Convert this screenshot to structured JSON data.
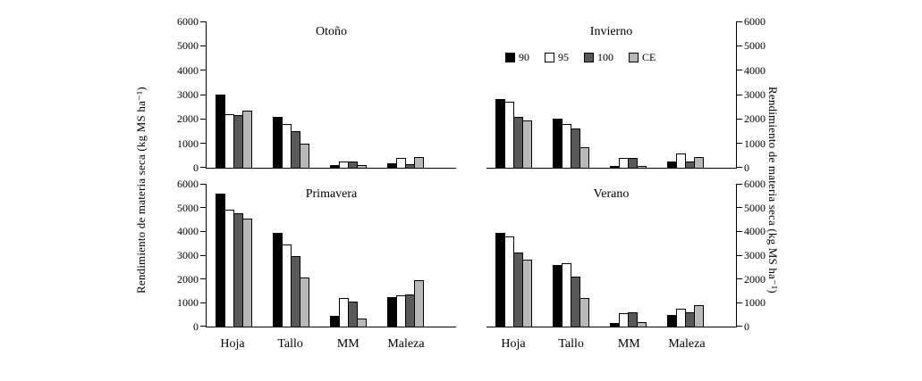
{
  "figure": {
    "left_axis_label": "Rendimiento de materia seca (kg MS ha⁻¹)",
    "right_axis_label": "Rendimiento de materia seca (kg MS ha⁻¹)",
    "background": "#ffffff",
    "axis_color": "#000000"
  },
  "legend": {
    "position": "top-center, inside Invierno panel",
    "entries": [
      {
        "label": "90",
        "color": "#000000"
      },
      {
        "label": "95",
        "color": "#ffffff"
      },
      {
        "label": "100",
        "color": "#595959"
      },
      {
        "label": "CE",
        "color": "#b8b8b8"
      }
    ]
  },
  "axes": {
    "yticks": [
      0,
      1000,
      2000,
      3000,
      4000,
      5000,
      6000
    ],
    "ytick_labels": [
      "0",
      "1000",
      "2000",
      "3000",
      "4000",
      "5000",
      "6000"
    ],
    "x_categories": [
      "Hoja",
      "Tallo",
      "MM",
      "Maleza"
    ]
  },
  "chart_data": [
    {
      "type": "bar",
      "title": "Otoño",
      "categories": [
        "Hoja",
        "Tallo",
        "MM",
        "Maleza"
      ],
      "series": [
        {
          "name": "90",
          "color": "#000000",
          "values": [
            3000,
            2100,
            100,
            200
          ]
        },
        {
          "name": "95",
          "color": "#ffffff",
          "values": [
            2200,
            1800,
            250,
            400
          ]
        },
        {
          "name": "100",
          "color": "#595959",
          "values": [
            2150,
            1500,
            250,
            150
          ]
        },
        {
          "name": "CE",
          "color": "#b8b8b8",
          "values": [
            2350,
            1000,
            100,
            450
          ]
        }
      ],
      "ylim": [
        0,
        6000
      ],
      "grid": false,
      "y_axis_side": "left"
    },
    {
      "type": "bar",
      "title": "Invierno",
      "categories": [
        "Hoja",
        "Tallo",
        "MM",
        "Maleza"
      ],
      "series": [
        {
          "name": "90",
          "color": "#000000",
          "values": [
            2800,
            2000,
            80,
            250
          ]
        },
        {
          "name": "95",
          "color": "#ffffff",
          "values": [
            2700,
            1800,
            400,
            600
          ]
        },
        {
          "name": "100",
          "color": "#595959",
          "values": [
            2100,
            1600,
            400,
            250
          ]
        },
        {
          "name": "CE",
          "color": "#b8b8b8",
          "values": [
            1950,
            850,
            80,
            450
          ]
        }
      ],
      "ylim": [
        0,
        6000
      ],
      "grid": false,
      "y_axis_side": "right"
    },
    {
      "type": "bar",
      "title": "Primavera",
      "categories": [
        "Hoja",
        "Tallo",
        "MM",
        "Maleza"
      ],
      "series": [
        {
          "name": "90",
          "color": "#000000",
          "values": [
            5600,
            3950,
            450,
            1250
          ]
        },
        {
          "name": "95",
          "color": "#ffffff",
          "values": [
            4900,
            3450,
            1200,
            1300
          ]
        },
        {
          "name": "100",
          "color": "#595959",
          "values": [
            4750,
            2950,
            1050,
            1350
          ]
        },
        {
          "name": "CE",
          "color": "#b8b8b8",
          "values": [
            4550,
            2050,
            350,
            1950
          ]
        }
      ],
      "ylim": [
        0,
        6000
      ],
      "grid": false,
      "y_axis_side": "left"
    },
    {
      "type": "bar",
      "title": "Verano",
      "categories": [
        "Hoja",
        "Tallo",
        "MM",
        "Maleza"
      ],
      "series": [
        {
          "name": "90",
          "color": "#000000",
          "values": [
            3950,
            2600,
            150,
            500
          ]
        },
        {
          "name": "95",
          "color": "#ffffff",
          "values": [
            3800,
            2650,
            550,
            750
          ]
        },
        {
          "name": "100",
          "color": "#595959",
          "values": [
            3100,
            2100,
            600,
            600
          ]
        },
        {
          "name": "CE",
          "color": "#b8b8b8",
          "values": [
            2800,
            1200,
            200,
            900
          ]
        }
      ],
      "ylim": [
        0,
        6000
      ],
      "grid": false,
      "y_axis_side": "right"
    }
  ]
}
